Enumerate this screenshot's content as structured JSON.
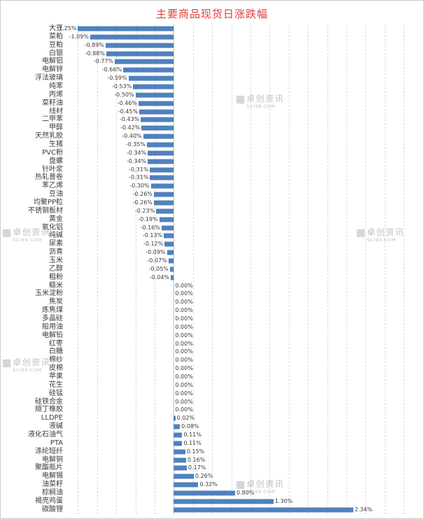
{
  "title": "主要商品现货日涨跌幅",
  "watermark": {
    "brand": "卓创资讯",
    "site": "SCI99.COM",
    "icon": "grid-logo-icon"
  },
  "chart_data": {
    "type": "bar",
    "orientation": "horizontal",
    "title": "主要商品现货日涨跌幅",
    "bar_color": "#4f81bd",
    "title_color": "#e43b3b",
    "value_format": "0.00%",
    "grid": "dashed-vertical",
    "legend": "none",
    "axis": {
      "min": -1.4,
      "max": 3.2,
      "grid_min": -1.25,
      "grid_max": 3.0,
      "grid_step": 0.25,
      "unit": "%"
    },
    "items": [
      {
        "label": "大豆",
        "value": -1.25
      },
      {
        "label": "菜粕",
        "value": -1.09
      },
      {
        "label": "豆粕",
        "value": -0.89
      },
      {
        "label": "白银",
        "value": -0.88
      },
      {
        "label": "电解铝",
        "value": -0.77
      },
      {
        "label": "电解锌",
        "value": -0.66
      },
      {
        "label": "浮法玻璃",
        "value": -0.59
      },
      {
        "label": "纯苯",
        "value": -0.53
      },
      {
        "label": "丙烯",
        "value": -0.5
      },
      {
        "label": "菜籽油",
        "value": -0.46
      },
      {
        "label": "线材",
        "value": -0.45
      },
      {
        "label": "二甲苯",
        "value": -0.43
      },
      {
        "label": "甲醇",
        "value": -0.42
      },
      {
        "label": "天然乳胶",
        "value": -0.4
      },
      {
        "label": "生猪",
        "value": -0.35
      },
      {
        "label": "PVC粉",
        "value": -0.34
      },
      {
        "label": "盘螺",
        "value": -0.34
      },
      {
        "label": "针叶浆",
        "value": -0.31
      },
      {
        "label": "热轧普卷",
        "value": -0.31
      },
      {
        "label": "苯乙烯",
        "value": -0.3
      },
      {
        "label": "豆油",
        "value": -0.26
      },
      {
        "label": "均聚PP粒",
        "value": -0.26
      },
      {
        "label": "不锈钢板材",
        "value": -0.23
      },
      {
        "label": "黄金",
        "value": -0.19
      },
      {
        "label": "氧化铝",
        "value": -0.16
      },
      {
        "label": "纯碱",
        "value": -0.13
      },
      {
        "label": "尿素",
        "value": -0.12
      },
      {
        "label": "沥青",
        "value": -0.09
      },
      {
        "label": "玉米",
        "value": -0.07
      },
      {
        "label": "乙醇",
        "value": -0.05
      },
      {
        "label": "粗粉",
        "value": -0.04
      },
      {
        "label": "糙米",
        "value": 0.0
      },
      {
        "label": "玉米淀粉",
        "value": 0.0
      },
      {
        "label": "焦炭",
        "value": 0.0
      },
      {
        "label": "炼焦煤",
        "value": 0.0
      },
      {
        "label": "多晶硅",
        "value": 0.0
      },
      {
        "label": "船用油",
        "value": 0.0
      },
      {
        "label": "电解铅",
        "value": 0.0
      },
      {
        "label": "红枣",
        "value": 0.0
      },
      {
        "label": "白糖",
        "value": 0.0
      },
      {
        "label": "棉纱",
        "value": 0.0
      },
      {
        "label": "皮棉",
        "value": 0.0
      },
      {
        "label": "苹果",
        "value": 0.0
      },
      {
        "label": "花生",
        "value": 0.0
      },
      {
        "label": "硅锰",
        "value": 0.0
      },
      {
        "label": "硅铁合金",
        "value": 0.0
      },
      {
        "label": "顺丁橡胶",
        "value": 0.0
      },
      {
        "label": "LLDPE",
        "value": 0.02
      },
      {
        "label": "液碱",
        "value": 0.08
      },
      {
        "label": "液化石油气",
        "value": 0.11
      },
      {
        "label": "PTA",
        "value": 0.11
      },
      {
        "label": "涤纶短纤",
        "value": 0.15
      },
      {
        "label": "电解铜",
        "value": 0.16
      },
      {
        "label": "聚酯瓶片",
        "value": 0.17
      },
      {
        "label": "电解锡",
        "value": 0.26
      },
      {
        "label": "油菜籽",
        "value": 0.32
      },
      {
        "label": "棕榈油",
        "value": 0.8
      },
      {
        "label": "褐壳鸡蛋",
        "value": 1.3
      },
      {
        "label": "碳酸锂",
        "value": 2.34
      }
    ]
  }
}
